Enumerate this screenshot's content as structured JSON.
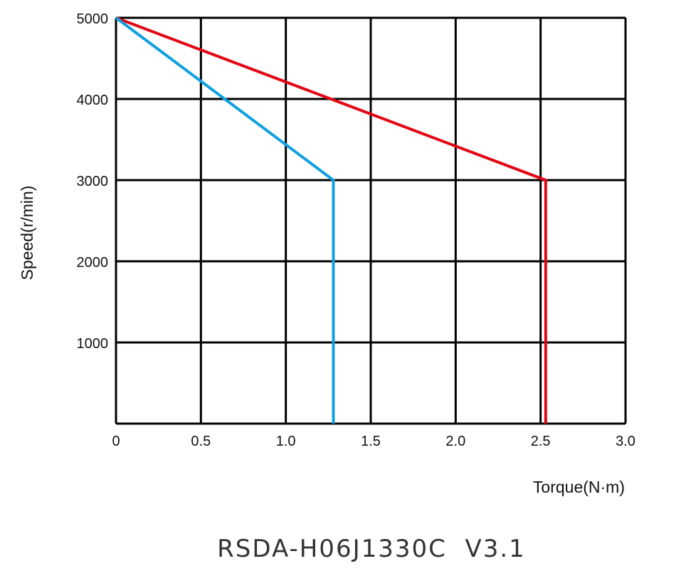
{
  "chart_data": {
    "type": "line",
    "xlabel": "Torque(N·m)",
    "ylabel": "Speed(r/min)",
    "footer": "RSDA-H06J1330C  V3.1",
    "xlim": [
      0,
      3.0
    ],
    "ylim": [
      0,
      5000
    ],
    "x_ticks": [
      "0",
      "0.5",
      "1.0",
      "1.5",
      "2.0",
      "2.5",
      "3.0"
    ],
    "x_tick_values": [
      0,
      0.5,
      1.0,
      1.5,
      2.0,
      2.5,
      3.0
    ],
    "y_ticks": [
      "1000",
      "2000",
      "3000",
      "4000",
      "5000"
    ],
    "y_tick_values": [
      1000,
      2000,
      3000,
      4000,
      5000
    ],
    "grid": true,
    "series": [
      {
        "color": "#e30613",
        "x": [
          0,
          2.53,
          2.53
        ],
        "y": [
          5000,
          3000,
          0
        ]
      },
      {
        "color": "#10a0e0",
        "x": [
          0,
          1.28,
          1.28
        ],
        "y": [
          5000,
          3000,
          0
        ]
      }
    ]
  }
}
